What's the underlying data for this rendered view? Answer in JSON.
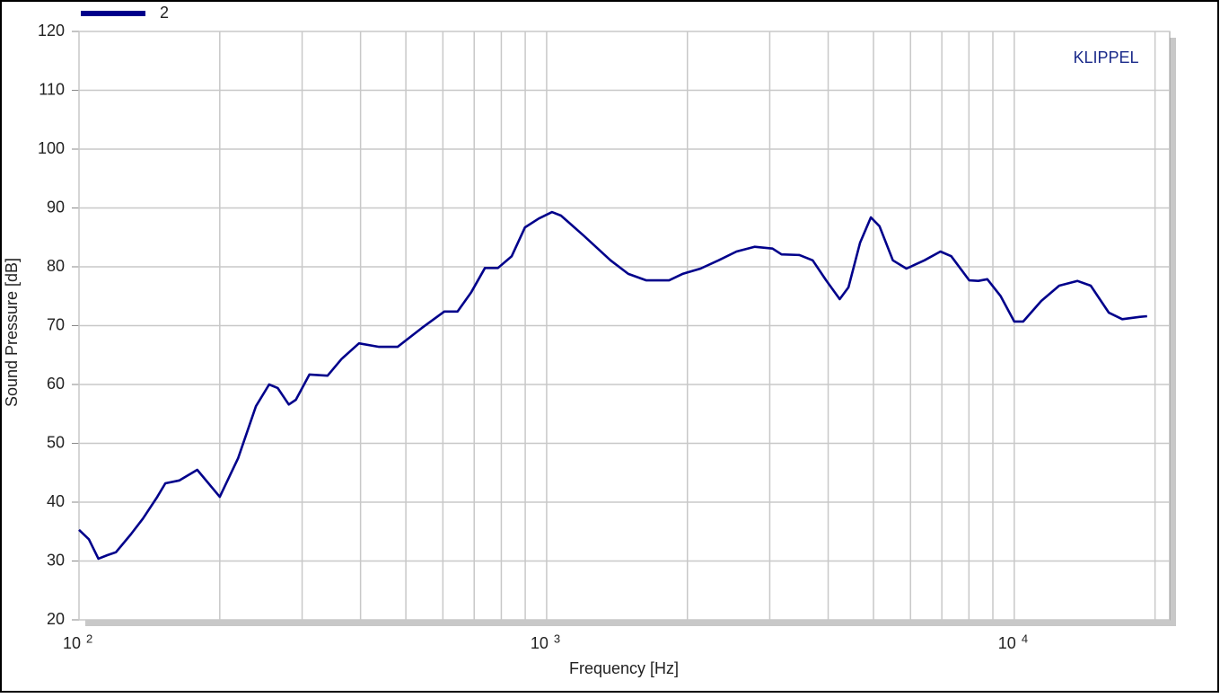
{
  "chart_data": {
    "type": "line",
    "annotation": "KLIPPEL",
    "xlabel": "Frequency  [Hz]",
    "ylabel": "Sound Pressure  [dB]",
    "log_x": true,
    "grid": true,
    "legend": "top-left",
    "x": [
      100,
      105,
      110,
      115,
      120,
      129,
      137,
      147,
      153,
      164,
      179,
      200,
      219,
      239,
      255,
      266,
      281,
      291,
      311,
      340,
      364,
      397,
      438,
      480,
      541,
      604,
      645,
      690,
      738,
      787,
      842,
      899,
      962,
      1027,
      1073,
      1200,
      1370,
      1495,
      1634,
      1827,
      1953,
      2133,
      2331,
      2547,
      2783,
      3041,
      3179,
      3474,
      3706,
      3960,
      4234,
      4420,
      4680,
      4936,
      5150,
      5500,
      5880,
      6423,
      6953,
      7330,
      8013,
      8380,
      8756,
      9355,
      10000,
      10450,
      11420,
      12480,
      13640,
      14570,
      15930,
      17020,
      18590,
      19230
    ],
    "series": [
      {
        "name": "2",
        "color": "#00008b",
        "values": [
          35.3,
          33.7,
          30.4,
          31,
          31.5,
          34.5,
          37.2,
          40.9,
          43.2,
          43.7,
          45.5,
          40.9,
          47.5,
          56.3,
          60,
          59.4,
          56.6,
          57.4,
          61.7,
          61.5,
          64.3,
          67,
          66.4,
          66.4,
          69.6,
          72.4,
          72.4,
          75.7,
          79.8,
          79.8,
          81.8,
          86.7,
          88.2,
          89.3,
          88.7,
          85.3,
          81.1,
          78.8,
          77.7,
          77.7,
          78.8,
          79.7,
          81.1,
          82.6,
          83.4,
          83.1,
          82.1,
          82,
          81.1,
          77.7,
          74.5,
          76.5,
          84.1,
          88.4,
          86.9,
          81.1,
          79.7,
          81.1,
          82.6,
          81.8,
          77.7,
          77.6,
          77.9,
          75,
          70.7,
          70.7,
          74.2,
          76.8,
          77.6,
          76.8,
          72.2,
          71.1,
          71.5,
          71.6
        ]
      }
    ],
    "xlim": [
      100,
      21500
    ],
    "xticks": [
      {
        "value": 100,
        "label": "10",
        "exponent": "2"
      },
      {
        "value": 1000,
        "label": "10",
        "exponent": "3"
      },
      {
        "value": 10000,
        "label": "10",
        "exponent": "4"
      }
    ],
    "xgrid": [
      200,
      300,
      400,
      500,
      600,
      700,
      800,
      900,
      2000,
      3000,
      4000,
      5000,
      6000,
      7000,
      8000,
      9000,
      20000
    ],
    "ylim": [
      20,
      120
    ],
    "yticks": [
      20,
      30,
      40,
      50,
      60,
      70,
      80,
      90,
      100,
      110,
      120
    ]
  }
}
